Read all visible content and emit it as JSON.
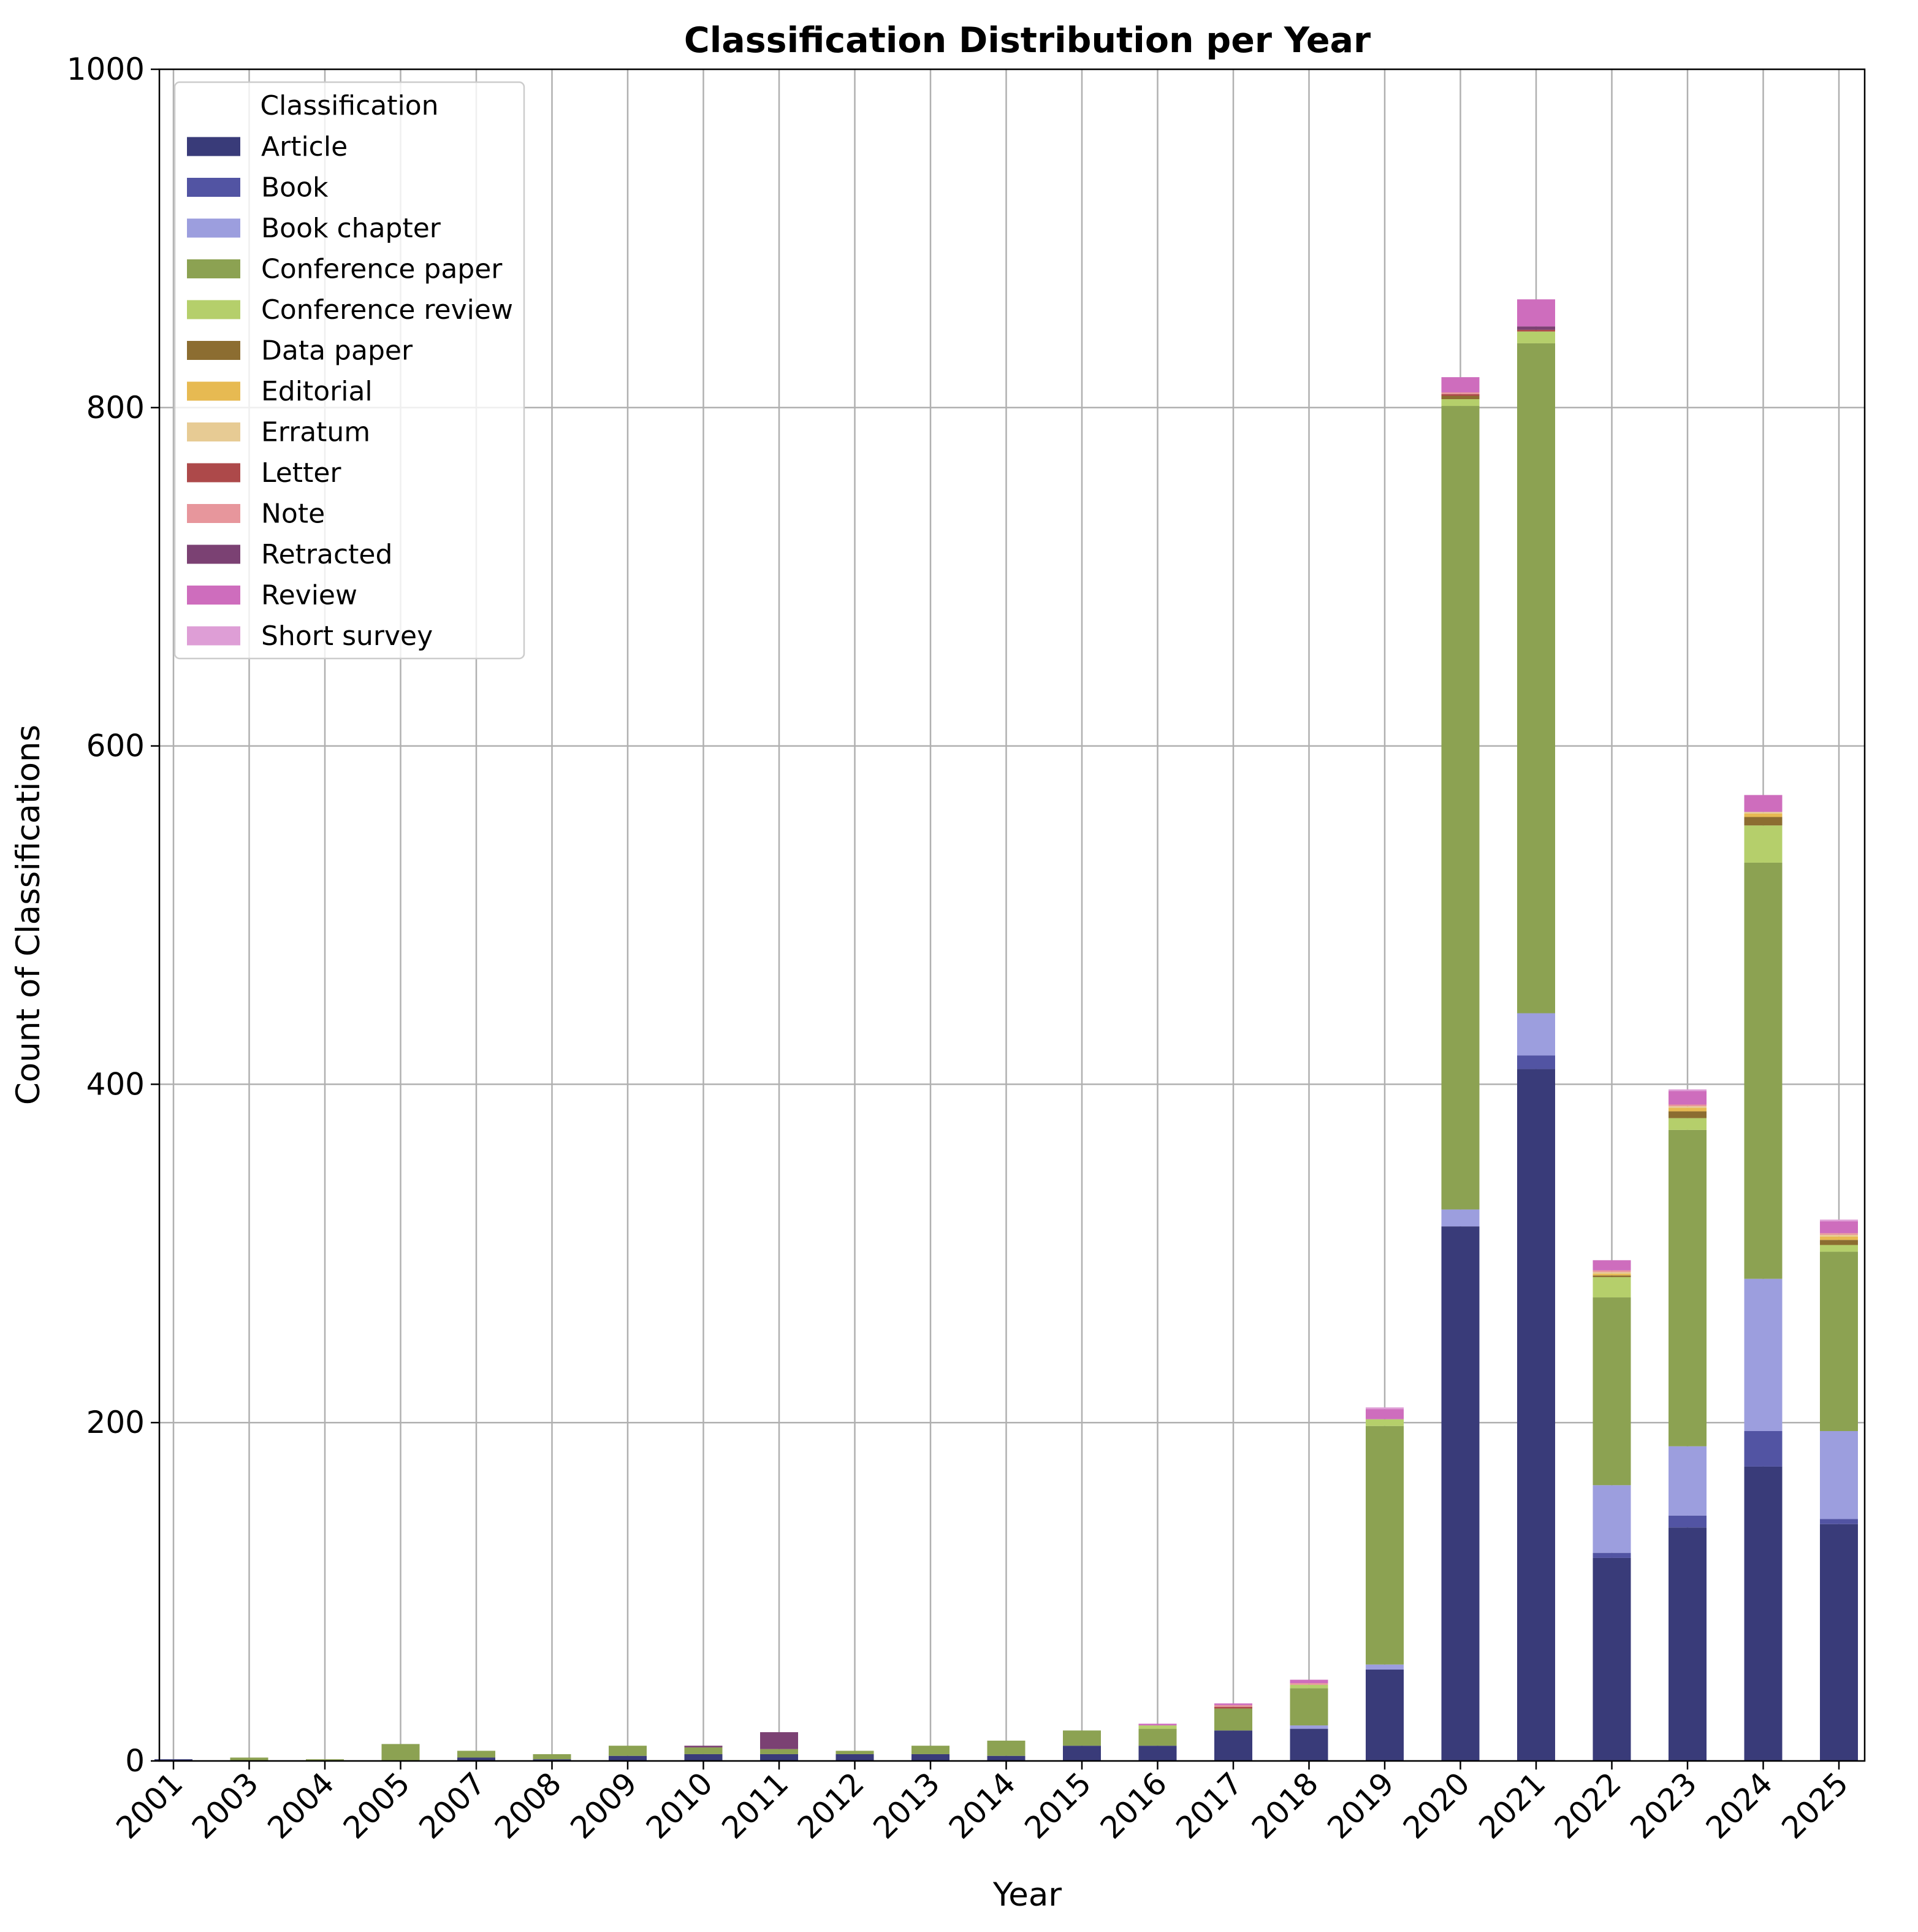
{
  "chart_data": {
    "type": "stacked-bar",
    "title": "Classification Distribution per Year",
    "xlabel": "Year",
    "ylabel": "Count of Classifications",
    "ylim": [
      0,
      1000
    ],
    "yticks": [
      0,
      200,
      400,
      600,
      800,
      1000
    ],
    "grid": true,
    "legend": {
      "title": "Classification",
      "position": "upper-left"
    },
    "categories": [
      "2001",
      "2003",
      "2004",
      "2005",
      "2007",
      "2008",
      "2009",
      "2010",
      "2011",
      "2012",
      "2013",
      "2014",
      "2015",
      "2016",
      "2017",
      "2018",
      "2019",
      "2020",
      "2021",
      "2022",
      "2023",
      "2024",
      "2025"
    ],
    "series": [
      {
        "name": "Article",
        "color": "#393b79",
        "values": [
          1,
          0,
          0,
          0,
          2,
          1,
          3,
          4,
          4,
          4,
          4,
          3,
          9,
          9,
          18,
          19,
          54,
          316,
          409,
          120,
          138,
          174,
          140
        ]
      },
      {
        "name": "Book",
        "color": "#5254a3",
        "values": [
          0,
          0,
          0,
          0,
          0,
          0,
          0,
          0,
          0,
          0,
          0,
          0,
          0,
          0,
          0,
          0,
          0,
          0,
          8,
          3,
          7,
          21,
          3
        ]
      },
      {
        "name": "Book chapter",
        "color": "#9c9ede",
        "values": [
          0,
          0,
          0,
          0,
          0,
          0,
          0,
          0,
          0,
          0,
          0,
          0,
          0,
          0,
          0,
          2,
          3,
          10,
          25,
          40,
          41,
          90,
          52
        ]
      },
      {
        "name": "Conference paper",
        "color": "#8ca252",
        "values": [
          0,
          2,
          1,
          10,
          4,
          3,
          6,
          4,
          3,
          2,
          5,
          9,
          9,
          10,
          13,
          22,
          141,
          475,
          396,
          111,
          187,
          246,
          106
        ]
      },
      {
        "name": "Conference review",
        "color": "#b5cf6b",
        "values": [
          0,
          0,
          0,
          0,
          0,
          0,
          0,
          0,
          0,
          0,
          0,
          0,
          0,
          2,
          0,
          2,
          4,
          4,
          7,
          12,
          7,
          22,
          4
        ]
      },
      {
        "name": "Data paper",
        "color": "#8c6d31",
        "values": [
          0,
          0,
          0,
          0,
          0,
          0,
          0,
          0,
          0,
          0,
          0,
          0,
          0,
          0,
          0,
          0,
          0,
          2,
          0,
          1,
          4,
          5,
          3
        ]
      },
      {
        "name": "Editorial",
        "color": "#e7ba52",
        "values": [
          0,
          0,
          0,
          0,
          0,
          0,
          0,
          0,
          0,
          0,
          0,
          0,
          0,
          0,
          0,
          0,
          0,
          0,
          0,
          1,
          2,
          2,
          2
        ]
      },
      {
        "name": "Erratum",
        "color": "#e7cb94",
        "values": [
          0,
          0,
          0,
          0,
          0,
          0,
          0,
          0,
          0,
          0,
          0,
          0,
          0,
          0,
          0,
          0,
          0,
          0,
          0,
          1,
          1,
          1,
          1
        ]
      },
      {
        "name": "Letter",
        "color": "#ad494a",
        "values": [
          0,
          0,
          0,
          0,
          0,
          0,
          0,
          0,
          0,
          0,
          0,
          0,
          0,
          0,
          1,
          0,
          0,
          1,
          1,
          0,
          0,
          0,
          0
        ]
      },
      {
        "name": "Note",
        "color": "#e7969c",
        "values": [
          0,
          0,
          0,
          0,
          0,
          0,
          0,
          0,
          0,
          0,
          0,
          0,
          0,
          0,
          1,
          1,
          0,
          1,
          0,
          1,
          1,
          0,
          1
        ]
      },
      {
        "name": "Retracted",
        "color": "#7b4173",
        "values": [
          0,
          0,
          0,
          0,
          0,
          0,
          0,
          1,
          10,
          0,
          0,
          0,
          0,
          0,
          0,
          0,
          0,
          0,
          2,
          0,
          0,
          0,
          0
        ]
      },
      {
        "name": "Review",
        "color": "#ce6dbd",
        "values": [
          0,
          0,
          0,
          0,
          0,
          0,
          0,
          0,
          0,
          0,
          0,
          0,
          0,
          1,
          1,
          2,
          6,
          9,
          16,
          6,
          8,
          10,
          7
        ]
      },
      {
        "name": "Short survey",
        "color": "#de9ed6",
        "values": [
          0,
          0,
          0,
          0,
          0,
          0,
          0,
          0,
          0,
          0,
          0,
          0,
          0,
          0,
          0,
          0,
          1,
          0,
          0,
          0,
          1,
          0,
          1
        ]
      }
    ]
  }
}
